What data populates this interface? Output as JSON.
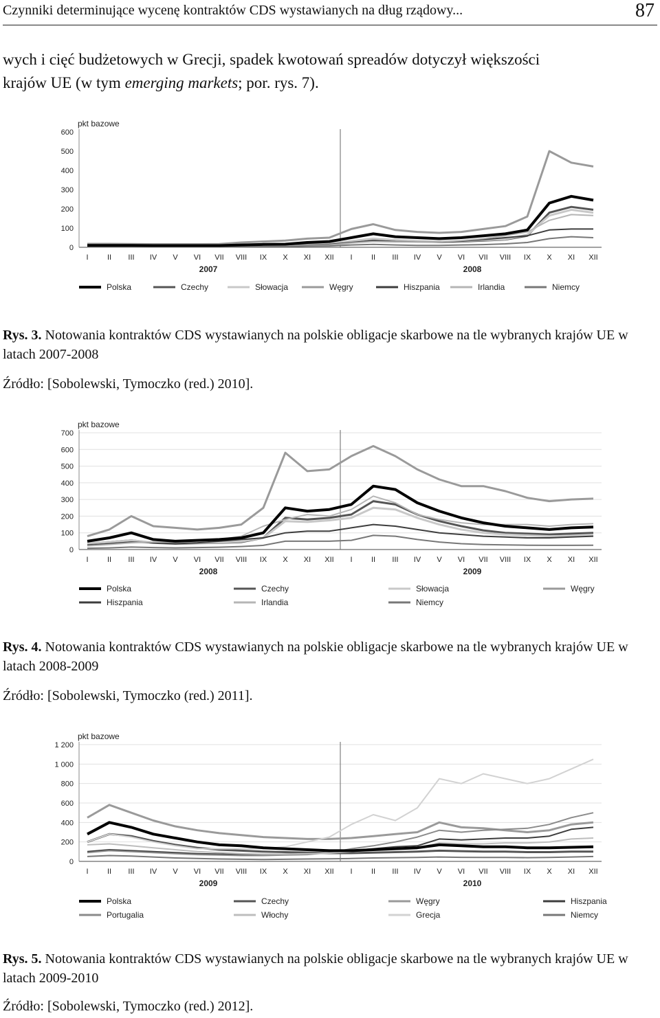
{
  "header": {
    "title": "Czynniki determinujące wycenę kontraktów CDS wystawianych na dług rządowy...",
    "page": "87"
  },
  "intro": {
    "line1": "wych i cięć budżetowych w Grecji, spadek kwotowań spreadów dotyczył większości",
    "line2_pre": "krajów UE (w tym ",
    "line2_em": "emerging markets",
    "line2_post": "; por. rys. 7)."
  },
  "figures": [
    {
      "caption_label": "Rys. 3.",
      "caption_text": "Notowania kontraktów CDS wystawianych na polskie obligacje skarbowe na tle wybranych krajów UE w latach 2007-2008",
      "source": "Źródło: [Sobolewski, Tymoczko (red.) 2010]."
    },
    {
      "caption_label": "Rys. 4.",
      "caption_text": "Notowania kontraktów CDS wystawianych na polskie obligacje skarbowe na tle wybranych krajów UE w latach 2008-2009",
      "source": "Źródło: [Sobolewski, Tymoczko (red.) 2011]."
    },
    {
      "caption_label": "Rys. 5.",
      "caption_text": "Notowania kontraktów CDS wystawianych na polskie obligacje skarbowe na tle wybranych krajów UE w latach 2009-2010",
      "source": "Źródło: [Sobolewski, Tymoczko (red.) 2012]."
    }
  ],
  "chart_data": [
    {
      "type": "line",
      "ylabel": "pkt bazowe",
      "ylim": [
        0,
        600
      ],
      "yticks": [
        "0",
        "100",
        "200",
        "300",
        "400",
        "500",
        "600"
      ],
      "xticks": [
        "I",
        "II",
        "III",
        "IV",
        "V",
        "VI",
        "VII",
        "VIII",
        "IX",
        "X",
        "XI",
        "XII",
        "I",
        "II",
        "III",
        "IV",
        "V",
        "VI",
        "VII",
        "VIII",
        "IX",
        "X",
        "XI",
        "XII"
      ],
      "years": [
        "2007",
        "2008"
      ],
      "grid": false,
      "legend_placement": "bottom",
      "x": [
        0,
        1,
        2,
        3,
        4,
        5,
        6,
        7,
        8,
        9,
        10,
        11,
        12,
        13,
        14,
        15,
        16,
        17,
        18,
        19,
        20,
        21,
        22,
        23
      ],
      "series": [
        {
          "name": "Polska",
          "color": "#000000",
          "width": 4,
          "values": [
            10,
            10,
            10,
            9,
            9,
            9,
            9,
            12,
            15,
            16,
            25,
            30,
            50,
            70,
            55,
            50,
            45,
            50,
            60,
            70,
            90,
            230,
            265,
            245
          ]
        },
        {
          "name": "Czechy",
          "color": "#555555",
          "width": 3,
          "values": [
            6,
            6,
            6,
            6,
            6,
            6,
            6,
            8,
            10,
            10,
            15,
            18,
            30,
            42,
            35,
            30,
            28,
            30,
            35,
            40,
            60,
            180,
            210,
            195
          ]
        },
        {
          "name": "Słowacja",
          "color": "#c8c8c8",
          "width": 3,
          "values": [
            7,
            7,
            7,
            7,
            7,
            7,
            7,
            9,
            11,
            11,
            16,
            20,
            32,
            45,
            38,
            33,
            30,
            32,
            38,
            42,
            65,
            165,
            195,
            180
          ]
        },
        {
          "name": "Węgry",
          "color": "#9a9a9a",
          "width": 3,
          "values": [
            18,
            18,
            17,
            16,
            16,
            16,
            17,
            25,
            30,
            35,
            45,
            50,
            95,
            120,
            90,
            80,
            75,
            80,
            95,
            110,
            160,
            500,
            440,
            420
          ]
        },
        {
          "name": "Hiszpania",
          "color": "#3d3d3d",
          "width": 2,
          "values": [
            3,
            3,
            3,
            3,
            3,
            3,
            3,
            5,
            7,
            8,
            12,
            15,
            25,
            35,
            30,
            28,
            28,
            32,
            40,
            50,
            60,
            90,
            95,
            95
          ]
        },
        {
          "name": "Irlandia",
          "color": "#b5b5b5",
          "width": 2,
          "values": [
            2,
            2,
            2,
            2,
            2,
            2,
            2,
            4,
            6,
            7,
            10,
            12,
            22,
            30,
            28,
            27,
            28,
            35,
            45,
            60,
            80,
            140,
            170,
            165
          ]
        },
        {
          "name": "Niemcy",
          "color": "#777777",
          "width": 2,
          "values": [
            2,
            2,
            2,
            2,
            2,
            2,
            2,
            3,
            4,
            4,
            6,
            7,
            12,
            15,
            12,
            10,
            10,
            12,
            14,
            18,
            25,
            45,
            55,
            50
          ]
        }
      ]
    },
    {
      "type": "line",
      "ylabel": "pkt bazowe",
      "ylim": [
        0,
        700
      ],
      "yticks": [
        "0",
        "100",
        "200",
        "300",
        "400",
        "500",
        "600",
        "700"
      ],
      "xticks": [
        "I",
        "II",
        "III",
        "IV",
        "V",
        "VI",
        "VII",
        "VIII",
        "IX",
        "X",
        "XI",
        "XII",
        "I",
        "II",
        "III",
        "IV",
        "V",
        "VI",
        "VII",
        "VIII",
        "IX",
        "X",
        "XI",
        "XII"
      ],
      "years": [
        "2008",
        "2009"
      ],
      "grid": true,
      "legend_placement": "bottom",
      "x": [
        0,
        1,
        2,
        3,
        4,
        5,
        6,
        7,
        8,
        9,
        10,
        11,
        12,
        13,
        14,
        15,
        16,
        17,
        18,
        19,
        20,
        21,
        22,
        23
      ],
      "series": [
        {
          "name": "Polska",
          "color": "#000000",
          "width": 4,
          "values": [
            50,
            70,
            100,
            60,
            50,
            55,
            60,
            70,
            100,
            250,
            230,
            240,
            270,
            380,
            360,
            280,
            230,
            190,
            160,
            140,
            130,
            120,
            130,
            135
          ]
        },
        {
          "name": "Czechy",
          "color": "#555555",
          "width": 3,
          "values": [
            35,
            45,
            55,
            40,
            35,
            38,
            40,
            45,
            70,
            190,
            180,
            190,
            210,
            290,
            270,
            210,
            170,
            140,
            115,
            100,
            95,
            90,
            95,
            100
          ]
        },
        {
          "name": "Słowacja",
          "color": "#c8c8c8",
          "width": 3,
          "values": [
            38,
            45,
            55,
            42,
            38,
            40,
            42,
            48,
            70,
            170,
            165,
            175,
            190,
            250,
            240,
            190,
            150,
            120,
            100,
            90,
            85,
            80,
            82,
            85
          ]
        },
        {
          "name": "Węgry",
          "color": "#9a9a9a",
          "width": 3,
          "values": [
            80,
            120,
            200,
            140,
            130,
            120,
            130,
            150,
            250,
            580,
            470,
            480,
            560,
            620,
            560,
            480,
            420,
            380,
            380,
            350,
            310,
            290,
            300,
            305
          ]
        },
        {
          "name": "Hiszpania",
          "color": "#3d3d3d",
          "width": 2,
          "values": [
            25,
            35,
            45,
            40,
            35,
            40,
            50,
            60,
            70,
            100,
            110,
            110,
            130,
            150,
            140,
            120,
            100,
            90,
            80,
            75,
            70,
            70,
            75,
            80
          ]
        },
        {
          "name": "Irlandia",
          "color": "#b5b5b5",
          "width": 2,
          "values": [
            22,
            30,
            40,
            45,
            45,
            55,
            60,
            80,
            140,
            180,
            210,
            200,
            240,
            320,
            280,
            210,
            180,
            160,
            150,
            150,
            150,
            140,
            150,
            155
          ]
        },
        {
          "name": "Niemcy",
          "color": "#777777",
          "width": 2,
          "values": [
            8,
            10,
            15,
            12,
            10,
            12,
            14,
            18,
            25,
            50,
            50,
            50,
            55,
            85,
            80,
            60,
            45,
            35,
            30,
            28,
            26,
            25,
            25,
            26
          ]
        }
      ]
    },
    {
      "type": "line",
      "ylabel": "pkt bazowe",
      "ylim": [
        0,
        1200
      ],
      "yticks": [
        "0",
        "200",
        "400",
        "600",
        "800",
        "1 000",
        "1 200"
      ],
      "xticks": [
        "I",
        "II",
        "III",
        "IV",
        "V",
        "VI",
        "VII",
        "VIII",
        "IX",
        "X",
        "XI",
        "XII",
        "I",
        "II",
        "III",
        "IV",
        "V",
        "VI",
        "VII",
        "VIII",
        "IX",
        "X",
        "XI",
        "XII"
      ],
      "years": [
        "2009",
        "2010"
      ],
      "grid": true,
      "legend_placement": "bottom",
      "x": [
        0,
        1,
        2,
        3,
        4,
        5,
        6,
        7,
        8,
        9,
        10,
        11,
        12,
        13,
        14,
        15,
        16,
        17,
        18,
        19,
        20,
        21,
        22,
        23
      ],
      "series": [
        {
          "name": "Polska",
          "color": "#000000",
          "width": 4,
          "values": [
            280,
            400,
            350,
            280,
            240,
            200,
            170,
            160,
            140,
            130,
            120,
            110,
            110,
            120,
            130,
            140,
            170,
            160,
            150,
            150,
            140,
            140,
            145,
            150
          ]
        },
        {
          "name": "Czechy",
          "color": "#555555",
          "width": 3,
          "values": [
            200,
            280,
            260,
            210,
            170,
            140,
            120,
            110,
            100,
            95,
            90,
            85,
            85,
            90,
            95,
            100,
            110,
            105,
            100,
            100,
            95,
            95,
            100,
            100
          ]
        },
        {
          "name": "Węgry",
          "color": "#9a9a9a",
          "width": 3,
          "values": [
            450,
            580,
            500,
            420,
            360,
            320,
            290,
            270,
            250,
            240,
            230,
            230,
            240,
            260,
            280,
            300,
            400,
            350,
            340,
            320,
            300,
            320,
            380,
            400
          ]
        },
        {
          "name": "Hiszpania",
          "color": "#3d3d3d",
          "width": 2,
          "values": [
            100,
            120,
            110,
            100,
            90,
            80,
            75,
            70,
            70,
            75,
            80,
            90,
            110,
            130,
            150,
            160,
            230,
            220,
            230,
            240,
            240,
            260,
            330,
            350
          ]
        },
        {
          "name": "Portugalia",
          "color": "#8a8a8a",
          "width": 2,
          "values": [
            90,
            110,
            100,
            90,
            80,
            70,
            65,
            60,
            60,
            65,
            70,
            90,
            130,
            160,
            200,
            250,
            320,
            300,
            320,
            330,
            340,
            380,
            450,
            500
          ]
        },
        {
          "name": "Włochy",
          "color": "#bdbdbd",
          "width": 2,
          "values": [
            170,
            180,
            160,
            140,
            120,
            100,
            90,
            80,
            75,
            75,
            80,
            85,
            100,
            120,
            130,
            140,
            190,
            180,
            180,
            190,
            190,
            200,
            230,
            240
          ]
        },
        {
          "name": "Grecja",
          "color": "#d2d2d2",
          "width": 2,
          "values": [
            200,
            280,
            250,
            200,
            160,
            130,
            130,
            130,
            130,
            150,
            200,
            250,
            380,
            480,
            420,
            550,
            850,
            800,
            900,
            850,
            800,
            850,
            950,
            1050
          ]
        },
        {
          "name": "Niemcy",
          "color": "#777777",
          "width": 2,
          "values": [
            50,
            60,
            55,
            45,
            35,
            30,
            25,
            22,
            20,
            22,
            25,
            27,
            30,
            35,
            38,
            40,
            45,
            42,
            40,
            40,
            38,
            40,
            45,
            50
          ]
        }
      ]
    }
  ]
}
